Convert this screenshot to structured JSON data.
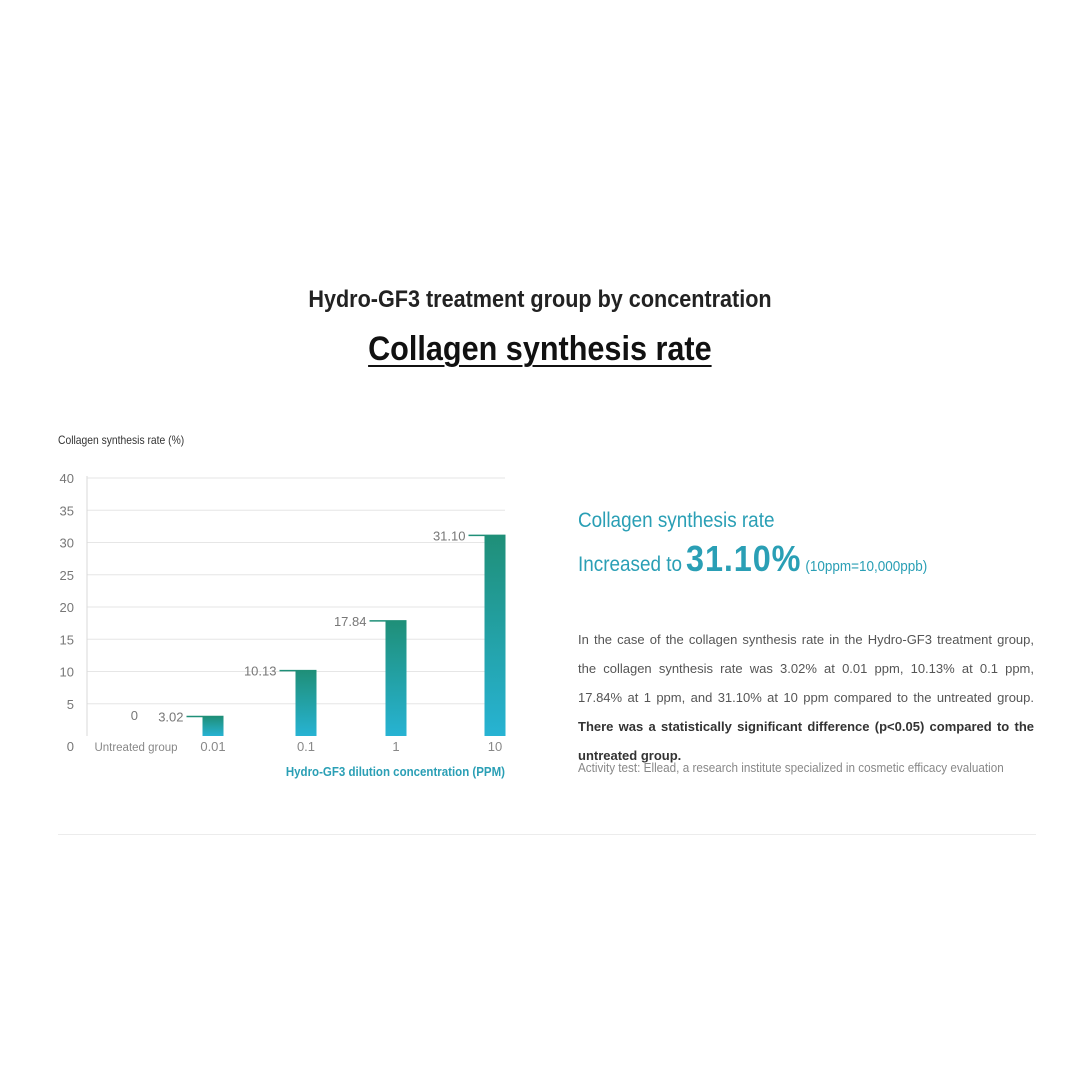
{
  "header": {
    "subtitle": "Hydro-GF3 treatment group by concentration",
    "title": "Collagen synthesis rate"
  },
  "chart_data": {
    "type": "bar",
    "title": "",
    "ylabel": "Collagen synthesis rate (%)",
    "xlabel": "Hydro-GF3 dilution concentration (PPM)",
    "categories": [
      "Untreated group",
      "0.01",
      "0.1",
      "1",
      "10"
    ],
    "values": [
      0,
      3.02,
      10.13,
      17.84,
      31.1
    ],
    "value_labels": [
      "0",
      "3.02",
      "10.13",
      "17.84",
      "31.10"
    ],
    "y_ticks": [
      "0",
      "5",
      "10",
      "15",
      "20",
      "25",
      "30",
      "35",
      "40"
    ],
    "ylim": [
      0,
      40
    ],
    "grid": true,
    "colors": {
      "bar_top": "#1f8f78",
      "bar_bottom": "#27b3d3",
      "grid": "#e6e6e6",
      "axis_title": "#2a9fb5"
    }
  },
  "info": {
    "line1": "Collagen synthesis rate",
    "line2_prefix": "Increased to",
    "value": "31.10%",
    "note": "(10ppm=10,000ppb)",
    "description_main": "In the case of the collagen synthesis rate in the Hydro-GF3 treatment group, the collagen synthesis rate was 3.02% at 0.01 ppm, 10.13% at 0.1 ppm, 17.84% at 1 ppm, and 31.10% at 10 ppm compared to the untreated group.",
    "description_bold": "There was a statistically significant difference (p<0.05) compared to the untreated group.",
    "credit": "Activity test: Ellead, a research institute specialized in cosmetic efficacy evaluation"
  }
}
